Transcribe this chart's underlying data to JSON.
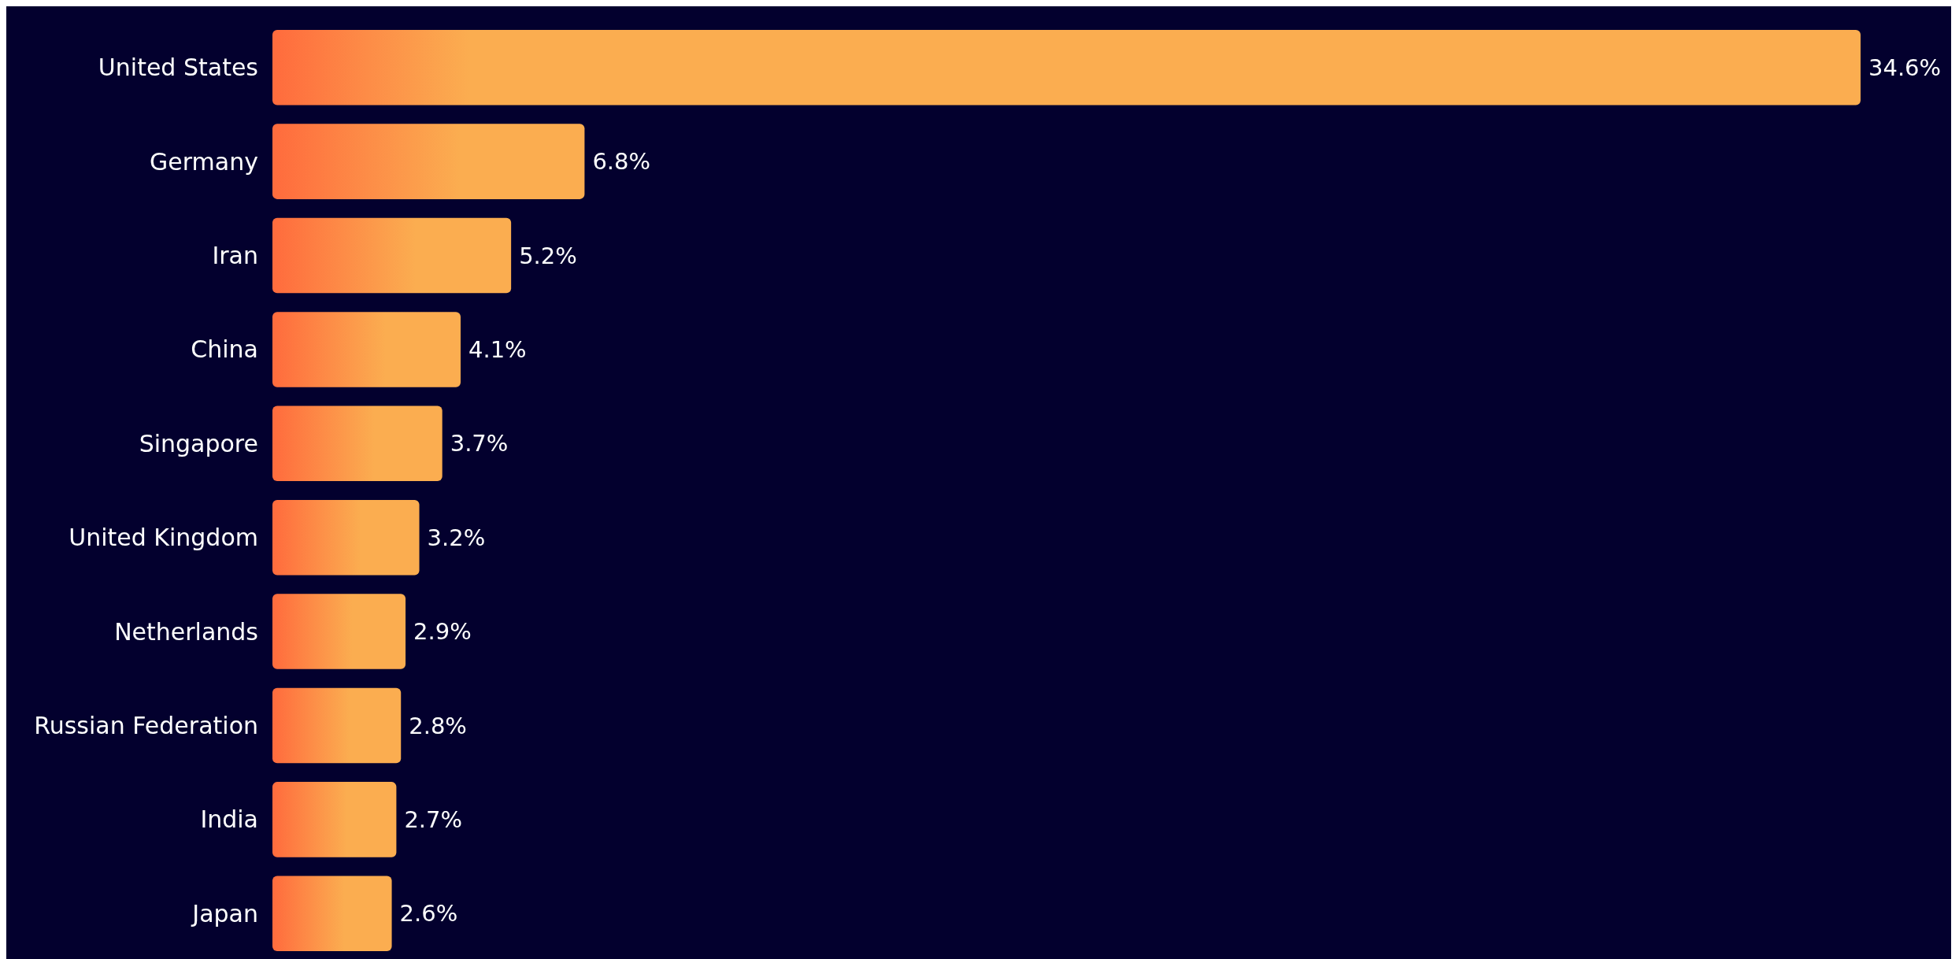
{
  "chart_data": {
    "type": "bar",
    "orientation": "horizontal",
    "categories": [
      "United States",
      "Germany",
      "Iran",
      "China",
      "Singapore",
      "United Kingdom",
      "Netherlands",
      "Russian Federation",
      "India",
      "Japan"
    ],
    "values": [
      34.6,
      6.8,
      5.2,
      4.1,
      3.7,
      3.2,
      2.9,
      2.8,
      2.7,
      2.6
    ],
    "value_labels": [
      "34.6%",
      "6.8%",
      "5.2%",
      "4.1%",
      "3.7%",
      "3.2%",
      "2.9%",
      "2.8%",
      "2.7%",
      "2.6%"
    ],
    "color": "#fbad50"
  }
}
